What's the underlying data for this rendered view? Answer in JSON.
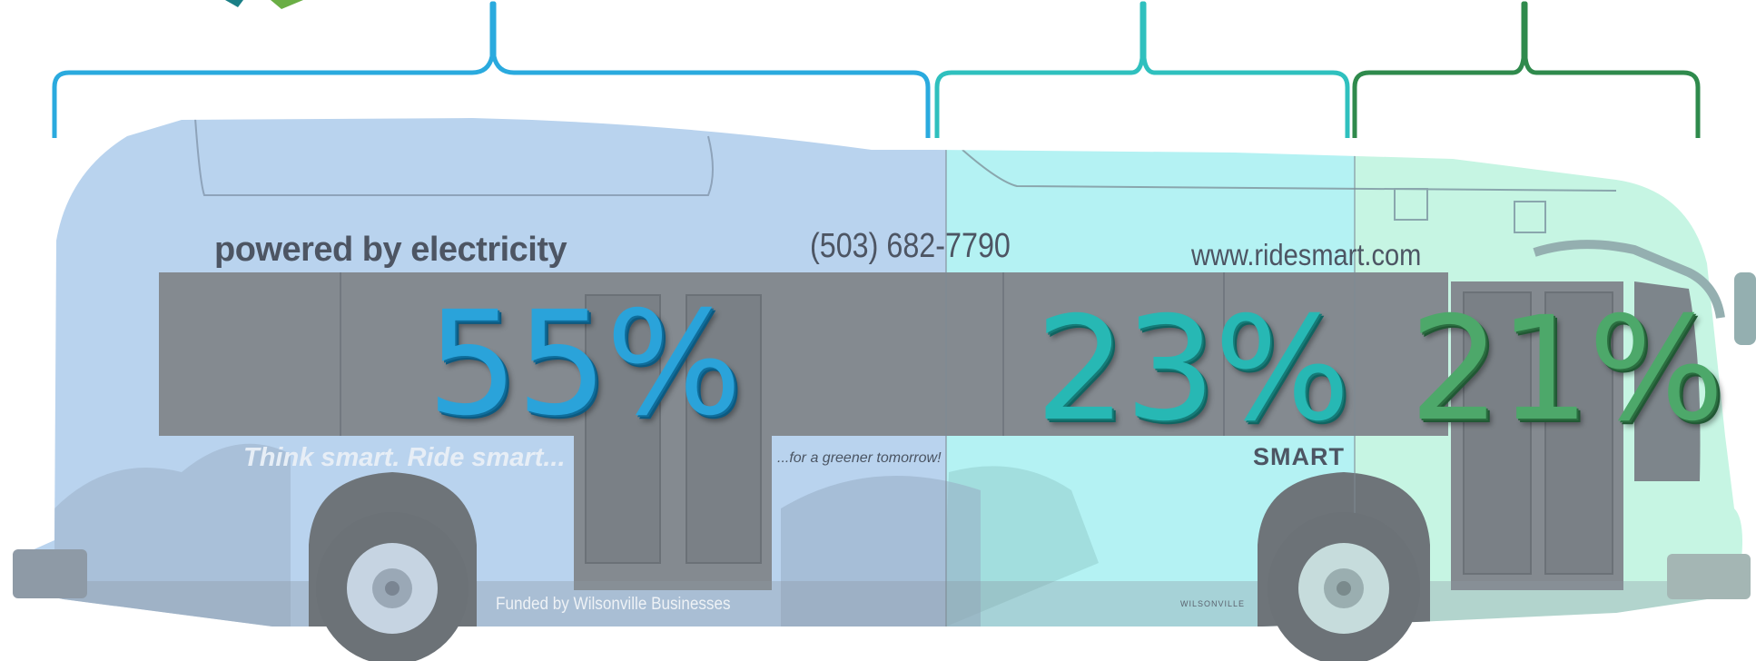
{
  "segments": [
    {
      "percent_label": "55%",
      "color": "#2AA3DA"
    },
    {
      "percent_label": "23%",
      "color": "#27B8B4"
    },
    {
      "percent_label": "21%",
      "color": "#4DA86A"
    }
  ],
  "bus": {
    "slogan": "powered by electricity",
    "phone": "(503) 682-7790",
    "website": "www.ridesmart.com",
    "tagline": "Think smart. Ride smart...",
    "tagline_2": "...for a greener tomorrow!",
    "funding": "Funded by Wilsonville Businesses",
    "brand": "SMART",
    "city": "WILSONVILLE"
  }
}
